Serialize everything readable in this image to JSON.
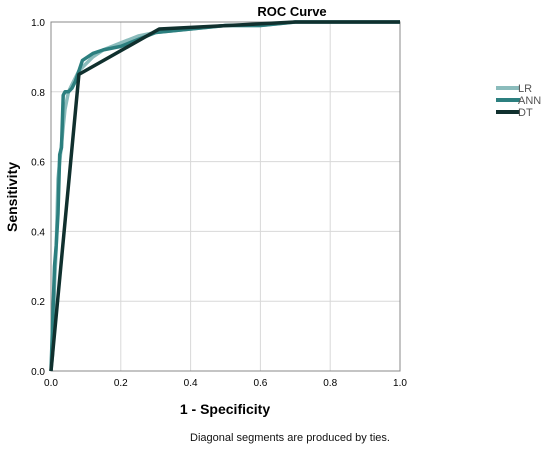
{
  "chart_data": {
    "type": "line",
    "title": "ROC Curve",
    "xlabel": "1 - Specificity",
    "ylabel": "Sensitivity",
    "xlim": [
      0,
      1
    ],
    "ylim": [
      0,
      1
    ],
    "xticks": [
      "0.0",
      "0.2",
      "0.4",
      "0.6",
      "0.8",
      "1.0"
    ],
    "yticks": [
      "0.0",
      "0.2",
      "0.4",
      "0.6",
      "0.8",
      "1.0"
    ],
    "grid": true,
    "legend_position": "right",
    "series": [
      {
        "name": "LR",
        "color": "#8bbcbc",
        "points": [
          [
            0,
            0
          ],
          [
            0.005,
            0.05
          ],
          [
            0.01,
            0.25
          ],
          [
            0.015,
            0.35
          ],
          [
            0.02,
            0.55
          ],
          [
            0.025,
            0.6
          ],
          [
            0.03,
            0.65
          ],
          [
            0.035,
            0.7
          ],
          [
            0.04,
            0.75
          ],
          [
            0.05,
            0.8
          ],
          [
            0.06,
            0.82
          ],
          [
            0.07,
            0.84
          ],
          [
            0.08,
            0.86
          ],
          [
            0.1,
            0.88
          ],
          [
            0.12,
            0.9
          ],
          [
            0.15,
            0.92
          ],
          [
            0.2,
            0.94
          ],
          [
            0.25,
            0.96
          ],
          [
            0.3,
            0.97
          ],
          [
            0.4,
            0.98
          ],
          [
            0.5,
            0.99
          ],
          [
            0.6,
            0.99
          ],
          [
            0.7,
            1.0
          ],
          [
            1.0,
            1.0
          ]
        ]
      },
      {
        "name": "ANN",
        "color": "#2c7f7f",
        "points": [
          [
            0,
            0
          ],
          [
            0.01,
            0.3
          ],
          [
            0.015,
            0.36
          ],
          [
            0.02,
            0.45
          ],
          [
            0.025,
            0.62
          ],
          [
            0.03,
            0.64
          ],
          [
            0.035,
            0.79
          ],
          [
            0.04,
            0.8
          ],
          [
            0.05,
            0.8
          ],
          [
            0.06,
            0.81
          ],
          [
            0.07,
            0.83
          ],
          [
            0.08,
            0.86
          ],
          [
            0.09,
            0.89
          ],
          [
            0.12,
            0.91
          ],
          [
            0.15,
            0.92
          ],
          [
            0.2,
            0.93
          ],
          [
            0.25,
            0.95
          ],
          [
            0.3,
            0.97
          ],
          [
            0.4,
            0.98
          ],
          [
            0.5,
            0.99
          ],
          [
            0.6,
            0.99
          ],
          [
            0.7,
            1.0
          ],
          [
            1.0,
            1.0
          ]
        ]
      },
      {
        "name": "DT",
        "color": "#10302e",
        "points": [
          [
            0,
            0
          ],
          [
            0.08,
            0.85
          ],
          [
            0.31,
            0.98
          ],
          [
            0.7,
            1.0
          ],
          [
            1.0,
            1.0
          ]
        ]
      }
    ]
  },
  "footnote": "Diagonal segments are produced by ties."
}
